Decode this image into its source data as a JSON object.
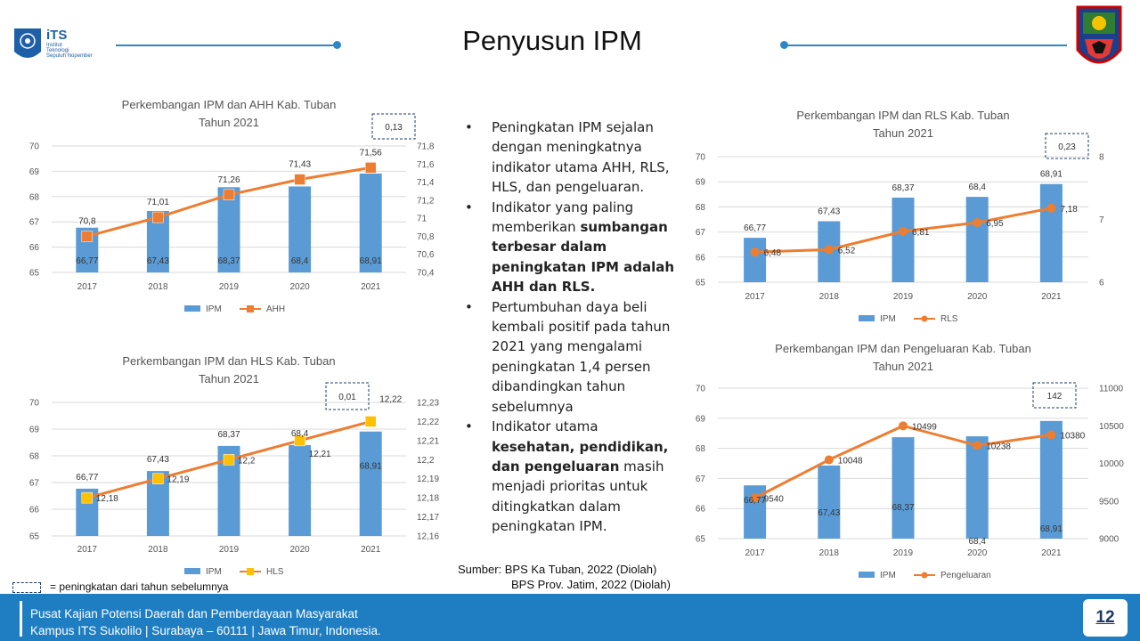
{
  "header": {
    "title": "Penyusun IPM",
    "logo": {
      "mark": "iTS",
      "line1": "Institut",
      "line2": "Teknologi",
      "line3": "Sepuluh Nopember"
    },
    "accent": "#2e86c8"
  },
  "bullets": [
    {
      "parts": [
        {
          "t": "Peningkatan IPM sejalan dengan meningkatnya indikator utama AHH, RLS, HLS, dan pengeluaran.",
          "b": false
        }
      ]
    },
    {
      "parts": [
        {
          "t": "Indikator yang paling memberikan ",
          "b": false
        },
        {
          "t": "sumbangan terbesar dalam peningkatan IPM adalah AHH dan RLS.",
          "b": true
        }
      ]
    },
    {
      "parts": [
        {
          "t": "Pertumbuhan daya beli kembali positif pada tahun 2021 yang mengalami peningkatan 1,4 persen dibandingkan tahun sebelumnya",
          "b": false
        }
      ]
    },
    {
      "parts": [
        {
          "t": "Indikator utama ",
          "b": false
        },
        {
          "t": "kesehatan, pendidikan, dan pengeluaran",
          "b": true
        },
        {
          "t": " masih menjadi prioritas untuk ditingkatkan dalam peningkatan IPM.",
          "b": false
        }
      ]
    }
  ],
  "source": {
    "line1": "Sumber: BPS Ka Tuban, 2022 (Diolah)",
    "line2": "BPS Prov. Jatim, 2022 (Diolah)"
  },
  "legend_note": "= peningkatan dari tahun sebelumnya",
  "footer": {
    "line1": "Pusat Kajian Potensi Daerah dan Pemberdayaan Masyarakat",
    "line2": "Kampus ITS Sukolilo | Surabaya – 60111 | Jawa Timur, Indonesia.",
    "page": "12"
  },
  "colors": {
    "bar": "#5b9bd5",
    "line": "#ed7d31",
    "line_hls": "#ffc000",
    "footer": "#1f7ec2"
  },
  "chart_data": [
    {
      "id": "ahh",
      "type": "bar+line",
      "title": [
        "Perkembangan IPM dan AHH Kab. Tuban",
        "Tahun 2021"
      ],
      "categories": [
        "2017",
        "2018",
        "2019",
        "2020",
        "2021"
      ],
      "series": [
        {
          "name": "IPM",
          "kind": "bar",
          "axis": "left",
          "values": [
            66.77,
            67.43,
            68.37,
            68.4,
            68.91
          ],
          "labels": [
            "66,77",
            "67,43",
            "68,37",
            "68,4",
            "68,91"
          ]
        },
        {
          "name": "AHH",
          "kind": "line",
          "axis": "right",
          "values": [
            70.8,
            71.01,
            71.26,
            71.43,
            71.56
          ],
          "labels": [
            "70,8",
            "71,01",
            "71,26",
            "71,43",
            "71,56"
          ]
        }
      ],
      "left_axis": {
        "min": 65,
        "max": 70,
        "ticks": [
          "65",
          "66",
          "67",
          "68",
          "69",
          "70"
        ]
      },
      "right_axis": {
        "min": 70.4,
        "max": 71.8,
        "ticks": [
          "70,4",
          "70,6",
          "70,8",
          "71",
          "71,2",
          "71,4",
          "71,6",
          "71,8"
        ]
      },
      "increase_label": "0,13"
    },
    {
      "id": "hls",
      "type": "bar+line",
      "title": [
        "Perkembangan IPM dan HLS Kab. Tuban",
        "Tahun 2021"
      ],
      "categories": [
        "2017",
        "2018",
        "2019",
        "2020",
        "2021"
      ],
      "series": [
        {
          "name": "IPM",
          "kind": "bar",
          "axis": "left",
          "values": [
            66.77,
            67.43,
            68.37,
            68.4,
            68.91
          ],
          "labels": [
            "66,77",
            "67,43",
            "68,37",
            "68,4",
            "68,91"
          ]
        },
        {
          "name": "HLS",
          "kind": "line",
          "axis": "right",
          "values": [
            12.18,
            12.19,
            12.2,
            12.21,
            12.22
          ],
          "labels": [
            "12,18",
            "12,19",
            "12,2",
            "12,21",
            "12,22"
          ]
        }
      ],
      "left_axis": {
        "min": 65,
        "max": 70,
        "ticks": [
          "65",
          "66",
          "67",
          "68",
          "69",
          "70"
        ]
      },
      "right_axis": {
        "min": 12.16,
        "max": 12.23,
        "ticks": [
          "12,16",
          "12,17",
          "12,18",
          "12,19",
          "12,2",
          "12,21",
          "12,22",
          "12,23"
        ]
      },
      "increase_label": "0,01"
    },
    {
      "id": "rls",
      "type": "bar+line",
      "title": [
        "Perkembangan IPM dan RLS Kab. Tuban",
        "Tahun 2021"
      ],
      "categories": [
        "2017",
        "2018",
        "2019",
        "2020",
        "2021"
      ],
      "series": [
        {
          "name": "IPM",
          "kind": "bar",
          "axis": "left",
          "values": [
            66.77,
            67.43,
            68.37,
            68.4,
            68.91
          ],
          "labels": [
            "66,77",
            "67,43",
            "68,37",
            "68,4",
            "68,91"
          ]
        },
        {
          "name": "RLS",
          "kind": "line",
          "axis": "right",
          "values": [
            6.48,
            6.52,
            6.81,
            6.95,
            7.18
          ],
          "labels": [
            "6,48",
            "6,52",
            "6,81",
            "6,95",
            "7,18"
          ]
        }
      ],
      "left_axis": {
        "min": 65,
        "max": 70,
        "ticks": [
          "65",
          "66",
          "67",
          "68",
          "69",
          "70"
        ]
      },
      "right_axis": {
        "min": 6,
        "max": 8,
        "ticks": [
          "6",
          "7",
          "8"
        ]
      },
      "increase_label": "0,23"
    },
    {
      "id": "peng",
      "type": "bar+line",
      "title": [
        "Perkembangan IPM dan Pengeluaran Kab. Tuban",
        "Tahun 2021"
      ],
      "categories": [
        "2017",
        "2018",
        "2019",
        "2020",
        "2021"
      ],
      "series": [
        {
          "name": "IPM",
          "kind": "bar",
          "axis": "left",
          "values": [
            66.77,
            67.43,
            68.37,
            68.4,
            68.91
          ],
          "labels": [
            "66,77",
            "67,43",
            "68,37",
            "68,4",
            "68,91"
          ]
        },
        {
          "name": "Pengeluaran",
          "kind": "line",
          "axis": "right",
          "values": [
            9540,
            10048,
            10499,
            10238,
            10380
          ],
          "labels": [
            "9540",
            "10048",
            "10499",
            "10238",
            "10380"
          ]
        }
      ],
      "left_axis": {
        "min": 65,
        "max": 70,
        "ticks": [
          "65",
          "66",
          "67",
          "68",
          "69",
          "70"
        ]
      },
      "right_axis": {
        "min": 9000,
        "max": 11000,
        "ticks": [
          "9000",
          "9500",
          "10000",
          "10500",
          "11000"
        ]
      },
      "increase_label": "142"
    }
  ]
}
